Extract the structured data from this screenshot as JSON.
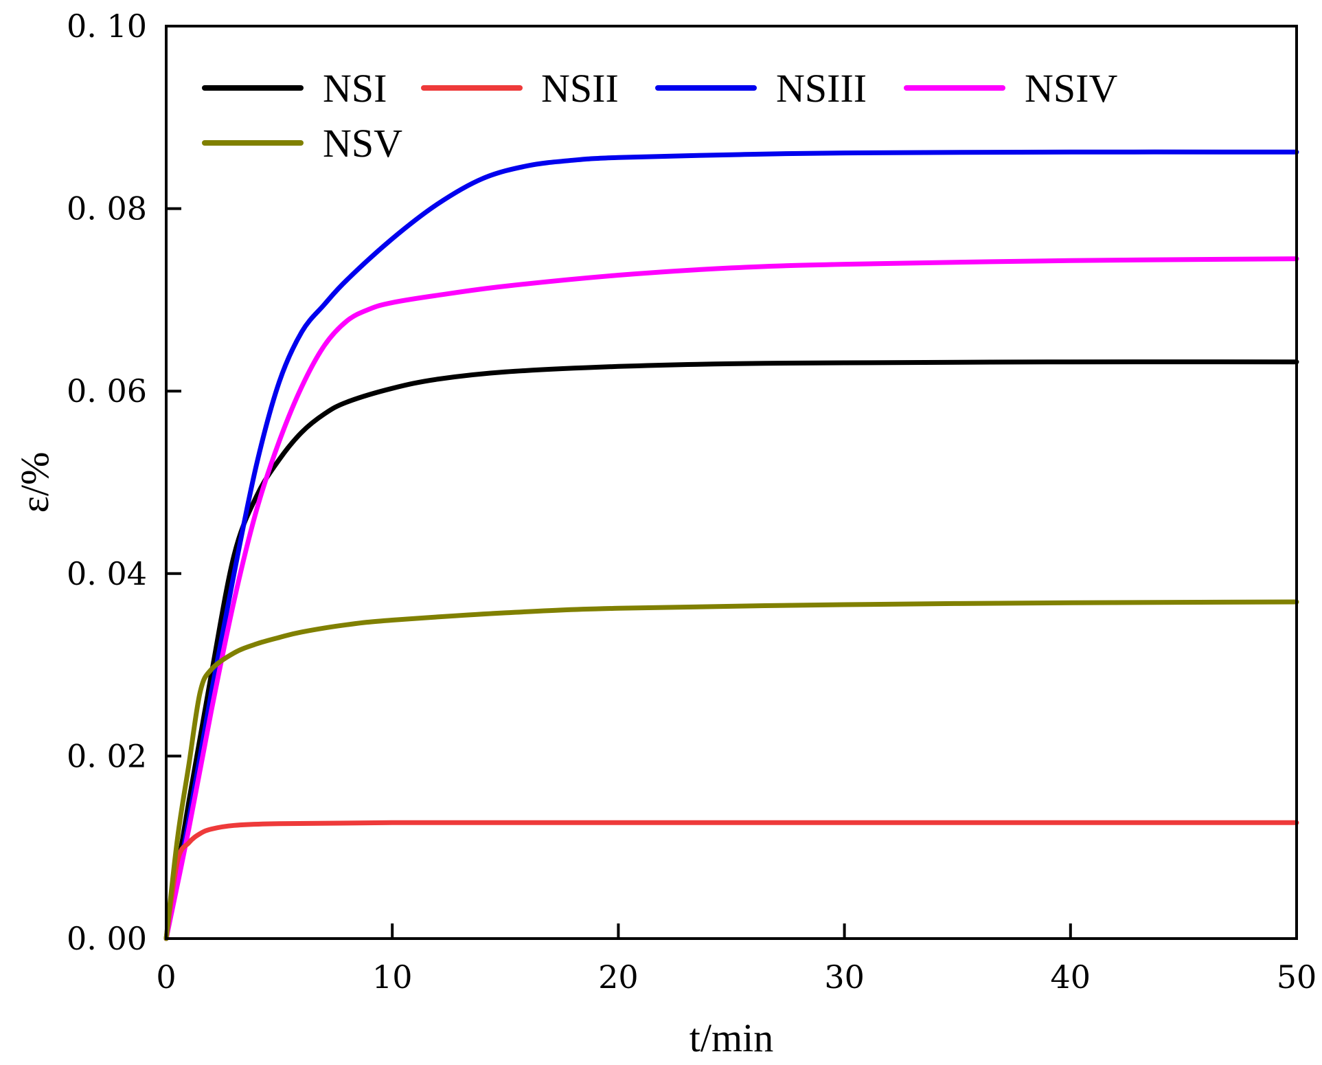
{
  "chart_data": {
    "type": "line",
    "title": "",
    "xlabel": "t/min",
    "ylabel": "ε/%",
    "xlim": [
      0,
      50
    ],
    "ylim": [
      0,
      0.1
    ],
    "xticks": [
      0,
      10,
      20,
      30,
      40,
      50
    ],
    "yticks": [
      0,
      0.02,
      0.04,
      0.06,
      0.08,
      0.1
    ],
    "xtick_labels": [
      "0",
      "10",
      "20",
      "30",
      "40",
      "50"
    ],
    "ytick_labels": [
      "0. 00",
      "0. 02",
      "0. 04",
      "0. 06",
      "0. 08",
      "0. 10"
    ],
    "grid": false,
    "legend_position": "top-left",
    "series": [
      {
        "name": "NSI",
        "color": "#000000",
        "x": [
          0,
          1,
          2,
          3,
          4,
          5,
          6,
          7,
          8,
          10,
          12,
          15,
          20,
          25,
          30,
          40,
          50
        ],
        "y": [
          0,
          0.015,
          0.029,
          0.042,
          0.0485,
          0.0525,
          0.0555,
          0.0575,
          0.0588,
          0.0603,
          0.0613,
          0.0621,
          0.0627,
          0.063,
          0.0631,
          0.0632,
          0.0632
        ]
      },
      {
        "name": "NSII",
        "color": "#ee3a3a",
        "x": [
          0,
          0.5,
          1,
          1.5,
          2,
          3,
          5,
          10,
          20,
          30,
          40,
          50
        ],
        "y": [
          0,
          0.0085,
          0.0105,
          0.0115,
          0.012,
          0.0124,
          0.0126,
          0.0127,
          0.0127,
          0.0127,
          0.0127,
          0.0127
        ]
      },
      {
        "name": "NSIII",
        "color": "#0000ee",
        "x": [
          0,
          1,
          2,
          3,
          4,
          5,
          6,
          7,
          8,
          10,
          12,
          14,
          16,
          18,
          20,
          25,
          30,
          40,
          50
        ],
        "y": [
          0,
          0.013,
          0.027,
          0.04,
          0.052,
          0.061,
          0.0665,
          0.0695,
          0.0722,
          0.0767,
          0.0805,
          0.0833,
          0.0847,
          0.0853,
          0.0856,
          0.0859,
          0.0861,
          0.0862,
          0.0862
        ]
      },
      {
        "name": "NSIV",
        "color": "#ff00ff",
        "x": [
          0,
          1,
          2,
          3,
          4,
          5,
          6,
          7,
          8,
          9,
          10,
          12,
          15,
          20,
          25,
          30,
          40,
          50
        ],
        "y": [
          0,
          0.012,
          0.025,
          0.037,
          0.047,
          0.0545,
          0.0605,
          0.065,
          0.0677,
          0.069,
          0.0697,
          0.0705,
          0.0715,
          0.0727,
          0.0735,
          0.0739,
          0.0743,
          0.0745
        ]
      },
      {
        "name": "NSV",
        "color": "#808000",
        "x": [
          0,
          0.5,
          1,
          1.5,
          2,
          3,
          4,
          5,
          6,
          8,
          10,
          15,
          20,
          30,
          40,
          50
        ],
        "y": [
          0,
          0.011,
          0.019,
          0.027,
          0.0295,
          0.0313,
          0.0323,
          0.033,
          0.0336,
          0.0344,
          0.0349,
          0.0357,
          0.0362,
          0.0366,
          0.0368,
          0.0369
        ]
      }
    ]
  }
}
